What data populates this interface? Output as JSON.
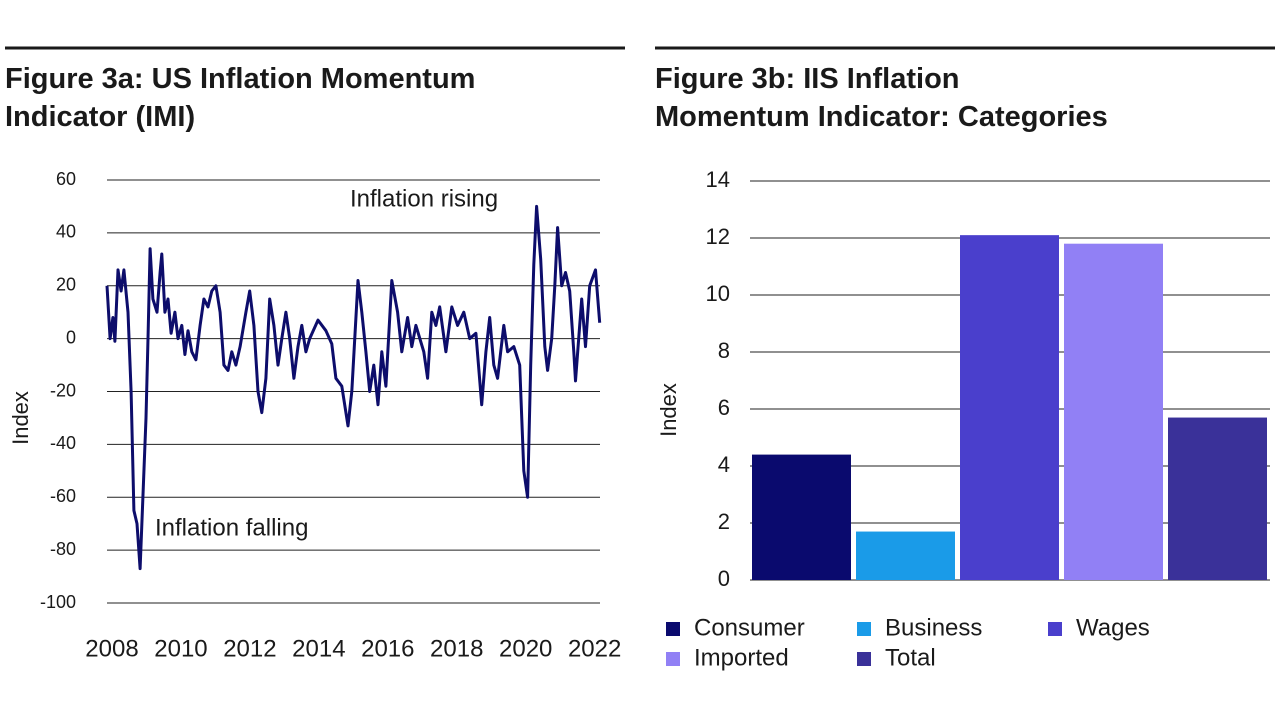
{
  "chart_data": [
    {
      "type": "line",
      "title": "Figure 3a: US Inflation Momentum Indicator (IMI)",
      "ylabel": "Index",
      "annotations": [
        "Inflation rising",
        "Inflation falling"
      ],
      "xlim": [
        2008,
        2022.3
      ],
      "xticks": [
        2008,
        2010,
        2012,
        2014,
        2016,
        2018,
        2020,
        2022
      ],
      "ylim": [
        -100,
        60
      ],
      "yticks": [
        -100,
        -80,
        -60,
        -40,
        -20,
        0,
        20,
        40,
        60
      ],
      "grid": true,
      "series": [
        {
          "name": "IMI",
          "color": "#0d0d6b",
          "x": [
            2008,
            2008.09,
            2008.17,
            2008.23,
            2008.32,
            2008.41,
            2008.49,
            2008.61,
            2008.7,
            2008.78,
            2008.87,
            2008.96,
            2009.04,
            2009.13,
            2009.19,
            2009.25,
            2009.33,
            2009.45,
            2009.54,
            2009.59,
            2009.68,
            2009.77,
            2009.86,
            2009.97,
            2010.06,
            2010.17,
            2010.26,
            2010.35,
            2010.46,
            2010.58,
            2010.7,
            2010.81,
            2010.93,
            2011.04,
            2011.16,
            2011.28,
            2011.39,
            2011.51,
            2011.62,
            2011.74,
            2011.86,
            2012.03,
            2012.14,
            2012.26,
            2012.38,
            2012.49,
            2012.61,
            2012.72,
            2012.84,
            2012.96,
            2013.07,
            2013.19,
            2013.3,
            2013.42,
            2013.54,
            2013.65,
            2013.77,
            2013.88,
            2014.12,
            2014.35,
            2014.52,
            2014.64,
            2014.81,
            2014.99,
            2015.1,
            2015.28,
            2015.39,
            2015.51,
            2015.62,
            2015.74,
            2015.86,
            2015.97,
            2016.09,
            2016.26,
            2016.43,
            2016.55,
            2016.72,
            2016.84,
            2016.96,
            2017.19,
            2017.3,
            2017.42,
            2017.54,
            2017.65,
            2017.83,
            2018,
            2018.17,
            2018.35,
            2018.52,
            2018.7,
            2018.87,
            2018.99,
            2019.1,
            2019.22,
            2019.33,
            2019.51,
            2019.62,
            2019.8,
            2019.97,
            2020.09,
            2020.2,
            2020.29,
            2020.38,
            2020.46,
            2020.58,
            2020.7,
            2020.78,
            2020.9,
            2020.99,
            2021.07,
            2021.19,
            2021.3,
            2021.42,
            2021.54,
            2021.59,
            2021.77,
            2021.88,
            2022,
            2022.17,
            2022.29
          ],
          "values": [
            20,
            0,
            8,
            -1,
            26,
            18,
            26,
            10,
            -20,
            -65,
            -70,
            -87,
            -60,
            -30,
            0,
            34,
            15,
            10,
            25,
            32,
            10,
            15,
            2,
            10,
            0,
            5,
            -6,
            3,
            -5,
            -8,
            5,
            15,
            12,
            18,
            20,
            10,
            -10,
            -12,
            -5,
            -10,
            -3,
            10,
            18,
            5,
            -20,
            -28,
            -15,
            15,
            5,
            -10,
            0,
            10,
            0,
            -15,
            -3,
            5,
            -5,
            0,
            7,
            3,
            -2,
            -15,
            -18,
            -33,
            -20,
            22,
            10,
            -5,
            -20,
            -10,
            -25,
            -5,
            -18,
            22,
            10,
            -5,
            8,
            -3,
            5,
            -5,
            -15,
            10,
            5,
            12,
            -5,
            12,
            5,
            10,
            0,
            2,
            -25,
            -5,
            8,
            -10,
            -15,
            5,
            -5,
            -3,
            -10,
            -50,
            -60,
            -10,
            28,
            50,
            30,
            -3,
            -12,
            0,
            20,
            42,
            20,
            25,
            18,
            -5,
            -16,
            15,
            -3,
            20,
            26,
            6
          ]
        }
      ]
    },
    {
      "type": "bar",
      "title": "Figure 3b: IIS Inflation Momentum Indicator: Categories",
      "ylabel": "Index",
      "categories": [
        "Consumer",
        "Business",
        "Wages",
        "Imported",
        "Total"
      ],
      "values": [
        4.4,
        1.7,
        12.1,
        11.8,
        5.7
      ],
      "colors": [
        "#0a0a6e",
        "#1a9be8",
        "#4a3fcc",
        "#9180f5",
        "#3a3199"
      ],
      "ylim": [
        0,
        14
      ],
      "yticks": [
        0,
        2,
        4,
        6,
        8,
        10,
        12,
        14
      ],
      "grid": true,
      "legend": "bottom"
    }
  ]
}
